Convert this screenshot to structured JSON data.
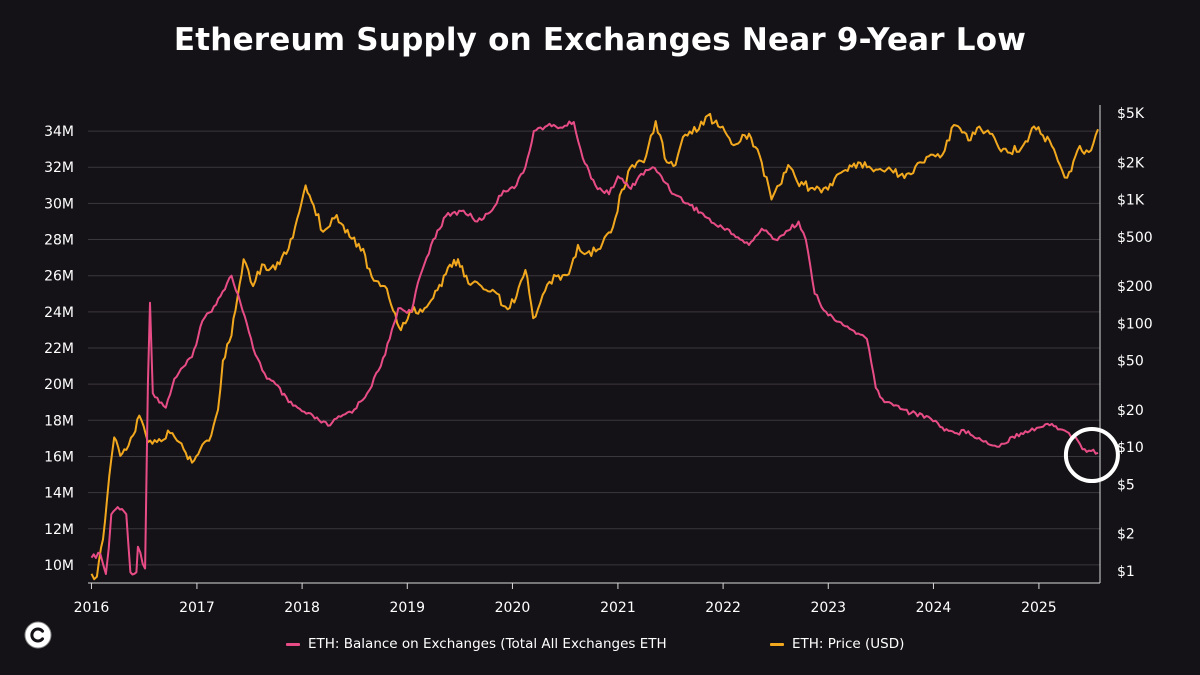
{
  "colors": {
    "balance": "#e84c86",
    "price": "#f2a81e",
    "background": "#141216",
    "grid": "#3a373d"
  },
  "logo": {
    "icon": "c-circle-logo-icon"
  },
  "chart_data": {
    "type": "line",
    "title": "Ethereum Supply on Exchanges Near 9-Year Low",
    "xlabel": "",
    "ylabel_left": "",
    "ylabel_right": "",
    "x_ticks": [
      "2016",
      "2017",
      "2018",
      "2019",
      "2020",
      "2021",
      "2022",
      "2023",
      "2024",
      "2025"
    ],
    "xlim": [
      "2015-12-20",
      "2025-08-01"
    ],
    "y_left_ticks": [
      {
        "value": 10000000,
        "label": "10M"
      },
      {
        "value": 12000000,
        "label": "12M"
      },
      {
        "value": 14000000,
        "label": "14M"
      },
      {
        "value": 16000000,
        "label": "16M"
      },
      {
        "value": 18000000,
        "label": "18M"
      },
      {
        "value": 20000000,
        "label": "20M"
      },
      {
        "value": 22000000,
        "label": "22M"
      },
      {
        "value": 24000000,
        "label": "24M"
      },
      {
        "value": 26000000,
        "label": "26M"
      },
      {
        "value": 28000000,
        "label": "28M"
      },
      {
        "value": 30000000,
        "label": "30M"
      },
      {
        "value": 32000000,
        "label": "32M"
      },
      {
        "value": 34000000,
        "label": "34M"
      }
    ],
    "ylim_left": [
      9000000,
      35000000
    ],
    "y_right_scale": "log",
    "y_right_ticks": [
      {
        "value": 1,
        "label": "$1"
      },
      {
        "value": 2,
        "label": "$2"
      },
      {
        "value": 5,
        "label": "$5"
      },
      {
        "value": 10,
        "label": "$10"
      },
      {
        "value": 20,
        "label": "$20"
      },
      {
        "value": 50,
        "label": "$50"
      },
      {
        "value": 100,
        "label": "$100"
      },
      {
        "value": 200,
        "label": "$200"
      },
      {
        "value": 500,
        "label": "$500"
      },
      {
        "value": 1000,
        "label": "$1K"
      },
      {
        "value": 2000,
        "label": "$2K"
      },
      {
        "value": 5000,
        "label": "$5K"
      }
    ],
    "ylim_right": [
      0.8,
      5000
    ],
    "grid": true,
    "legend_position": "bottom",
    "annotations": [
      {
        "type": "circle",
        "x": "2025-06-20",
        "y": 16300000,
        "axis": "left"
      }
    ],
    "series": [
      {
        "name": "ETH: Balance on Exchanges (Total All Exchanges ETH",
        "axis": "left",
        "color": "#e84c86",
        "points": [
          [
            "2016-01-01",
            10400000
          ],
          [
            "2016-02-01",
            10600000
          ],
          [
            "2016-02-20",
            9500000
          ],
          [
            "2016-03-01",
            10900000
          ],
          [
            "2016-03-10",
            12800000
          ],
          [
            "2016-04-01",
            13200000
          ],
          [
            "2016-05-01",
            12800000
          ],
          [
            "2016-05-15",
            9600000
          ],
          [
            "2016-06-05",
            9600000
          ],
          [
            "2016-06-10",
            11000000
          ],
          [
            "2016-07-05",
            9800000
          ],
          [
            "2016-07-15",
            20000000
          ],
          [
            "2016-07-22",
            24500000
          ],
          [
            "2016-08-01",
            19500000
          ],
          [
            "2016-09-15",
            18700000
          ],
          [
            "2016-10-15",
            20300000
          ],
          [
            "2016-12-15",
            21500000
          ],
          [
            "2017-01-20",
            23500000
          ],
          [
            "2017-03-01",
            24300000
          ],
          [
            "2017-05-01",
            26000000
          ],
          [
            "2017-06-01",
            24500000
          ],
          [
            "2017-07-15",
            22000000
          ],
          [
            "2017-09-01",
            20300000
          ],
          [
            "2017-10-01",
            20000000
          ],
          [
            "2017-11-15",
            19000000
          ],
          [
            "2018-01-01",
            18500000
          ],
          [
            "2018-03-01",
            18000000
          ],
          [
            "2018-04-01",
            17700000
          ],
          [
            "2018-05-15",
            18200000
          ],
          [
            "2018-07-01",
            18600000
          ],
          [
            "2018-08-15",
            19500000
          ],
          [
            "2018-10-01",
            21000000
          ],
          [
            "2018-11-01",
            22500000
          ],
          [
            "2018-12-01",
            24200000
          ],
          [
            "2019-01-15",
            24000000
          ],
          [
            "2019-02-15",
            26000000
          ],
          [
            "2019-04-01",
            28000000
          ],
          [
            "2019-05-15",
            29300000
          ],
          [
            "2019-07-15",
            29600000
          ],
          [
            "2019-09-01",
            29000000
          ],
          [
            "2019-10-15",
            29500000
          ],
          [
            "2019-12-01",
            30700000
          ],
          [
            "2020-01-15",
            31000000
          ],
          [
            "2020-02-15",
            32000000
          ],
          [
            "2020-03-15",
            34000000
          ],
          [
            "2020-05-01",
            34300000
          ],
          [
            "2020-06-15",
            34200000
          ],
          [
            "2020-08-01",
            34500000
          ],
          [
            "2020-09-01",
            32500000
          ],
          [
            "2020-10-15",
            31000000
          ],
          [
            "2020-12-01",
            30500000
          ],
          [
            "2021-01-01",
            31500000
          ],
          [
            "2021-02-15",
            30800000
          ],
          [
            "2021-03-15",
            31500000
          ],
          [
            "2021-05-01",
            32000000
          ],
          [
            "2021-06-01",
            31500000
          ],
          [
            "2021-07-15",
            30500000
          ],
          [
            "2021-09-01",
            30000000
          ],
          [
            "2021-10-15",
            29500000
          ],
          [
            "2021-12-15",
            28700000
          ],
          [
            "2022-01-15",
            28600000
          ],
          [
            "2022-03-01",
            28000000
          ],
          [
            "2022-04-01",
            27700000
          ],
          [
            "2022-05-15",
            28600000
          ],
          [
            "2022-07-01",
            28000000
          ],
          [
            "2022-08-15",
            28500000
          ],
          [
            "2022-09-20",
            29000000
          ],
          [
            "2022-10-15",
            28000000
          ],
          [
            "2022-11-15",
            25000000
          ],
          [
            "2023-01-01",
            23800000
          ],
          [
            "2023-03-01",
            23200000
          ],
          [
            "2023-04-15",
            22800000
          ],
          [
            "2023-05-15",
            22500000
          ],
          [
            "2023-06-15",
            19800000
          ],
          [
            "2023-07-15",
            19000000
          ],
          [
            "2023-09-01",
            18800000
          ],
          [
            "2023-10-15",
            18400000
          ],
          [
            "2023-12-15",
            18200000
          ],
          [
            "2024-02-01",
            17600000
          ],
          [
            "2024-03-15",
            17300000
          ],
          [
            "2024-05-01",
            17400000
          ],
          [
            "2024-06-15",
            16900000
          ],
          [
            "2024-08-01",
            16600000
          ],
          [
            "2024-09-01",
            16700000
          ],
          [
            "2024-10-01",
            17100000
          ],
          [
            "2024-11-15",
            17400000
          ],
          [
            "2025-01-01",
            17600000
          ],
          [
            "2025-02-15",
            17800000
          ],
          [
            "2025-03-15",
            17500000
          ],
          [
            "2025-04-15",
            17300000
          ],
          [
            "2025-05-15",
            16900000
          ],
          [
            "2025-06-01",
            16400000
          ],
          [
            "2025-07-01",
            16300000
          ],
          [
            "2025-07-25",
            16200000
          ]
        ]
      },
      {
        "name": "ETH: Price (USD)",
        "axis": "right",
        "color": "#f2a81e",
        "points": [
          [
            "2016-01-01",
            0.95
          ],
          [
            "2016-01-20",
            0.9
          ],
          [
            "2016-02-10",
            1.8
          ],
          [
            "2016-02-25",
            4.0
          ],
          [
            "2016-03-10",
            8.0
          ],
          [
            "2016-03-20",
            12.0
          ],
          [
            "2016-04-10",
            8.5
          ],
          [
            "2016-05-01",
            9.5
          ],
          [
            "2016-05-25",
            12.5
          ],
          [
            "2016-06-15",
            18.0
          ],
          [
            "2016-07-15",
            11.0
          ],
          [
            "2016-08-15",
            11.0
          ],
          [
            "2016-09-30",
            13.0
          ],
          [
            "2016-11-01",
            11.0
          ],
          [
            "2016-12-15",
            7.5
          ],
          [
            "2017-01-20",
            10.5
          ],
          [
            "2017-02-20",
            12.5
          ],
          [
            "2017-03-15",
            20.0
          ],
          [
            "2017-04-01",
            50.0
          ],
          [
            "2017-05-01",
            80.0
          ],
          [
            "2017-06-12",
            330.0
          ],
          [
            "2017-07-15",
            200.0
          ],
          [
            "2017-08-15",
            300.0
          ],
          [
            "2017-09-15",
            280.0
          ],
          [
            "2017-10-15",
            300.0
          ],
          [
            "2017-11-15",
            400.0
          ],
          [
            "2017-12-15",
            700.0
          ],
          [
            "2018-01-13",
            1300.0
          ],
          [
            "2018-02-10",
            900.0
          ],
          [
            "2018-03-15",
            550.0
          ],
          [
            "2018-05-01",
            750.0
          ],
          [
            "2018-06-15",
            500.0
          ],
          [
            "2018-08-01",
            400.0
          ],
          [
            "2018-08-15",
            280.0
          ],
          [
            "2018-09-15",
            220.0
          ],
          [
            "2018-10-15",
            200.0
          ],
          [
            "2018-11-20",
            120.0
          ],
          [
            "2018-12-10",
            88.0
          ],
          [
            "2019-01-10",
            125.0
          ],
          [
            "2019-02-15",
            130.0
          ],
          [
            "2019-04-01",
            160.0
          ],
          [
            "2019-05-15",
            250.0
          ],
          [
            "2019-06-26",
            330.0
          ],
          [
            "2019-08-01",
            210.0
          ],
          [
            "2019-09-15",
            200.0
          ],
          [
            "2019-11-01",
            180.0
          ],
          [
            "2019-12-15",
            130.0
          ],
          [
            "2020-01-15",
            165.0
          ],
          [
            "2020-02-15",
            270.0
          ],
          [
            "2020-03-13",
            110.0
          ],
          [
            "2020-04-15",
            170.0
          ],
          [
            "2020-06-01",
            240.0
          ],
          [
            "2020-07-15",
            250.0
          ],
          [
            "2020-08-15",
            430.0
          ],
          [
            "2020-09-15",
            370.0
          ],
          [
            "2020-11-01",
            400.0
          ],
          [
            "2020-12-15",
            600.0
          ],
          [
            "2021-01-15",
            1200.0
          ],
          [
            "2021-02-20",
            1900.0
          ],
          [
            "2021-04-01",
            2000.0
          ],
          [
            "2021-05-12",
            4300.0
          ],
          [
            "2021-06-20",
            2000.0
          ],
          [
            "2021-07-20",
            1900.0
          ],
          [
            "2021-08-15",
            3200.0
          ],
          [
            "2021-09-15",
            3400.0
          ],
          [
            "2021-11-10",
            4800.0
          ],
          [
            "2021-12-15",
            3900.0
          ],
          [
            "2022-01-15",
            3300.0
          ],
          [
            "2022-02-15",
            2800.0
          ],
          [
            "2022-04-01",
            3400.0
          ],
          [
            "2022-05-15",
            2000.0
          ],
          [
            "2022-06-18",
            1000.0
          ],
          [
            "2022-07-15",
            1300.0
          ],
          [
            "2022-08-15",
            1900.0
          ],
          [
            "2022-09-15",
            1400.0
          ],
          [
            "2022-11-15",
            1200.0
          ],
          [
            "2022-12-31",
            1200.0
          ],
          [
            "2023-02-15",
            1650.0
          ],
          [
            "2023-04-15",
            2000.0
          ],
          [
            "2023-06-15",
            1750.0
          ],
          [
            "2023-08-15",
            1650.0
          ],
          [
            "2023-10-15",
            1600.0
          ],
          [
            "2023-11-15",
            2000.0
          ],
          [
            "2023-12-31",
            2300.0
          ],
          [
            "2024-02-01",
            2300.0
          ],
          [
            "2024-03-12",
            4000.0
          ],
          [
            "2024-05-01",
            3000.0
          ],
          [
            "2024-06-01",
            3800.0
          ],
          [
            "2024-07-15",
            3400.0
          ],
          [
            "2024-08-15",
            2600.0
          ],
          [
            "2024-09-15",
            2400.0
          ],
          [
            "2024-11-01",
            2600.0
          ],
          [
            "2024-12-15",
            3900.0
          ],
          [
            "2025-01-15",
            3300.0
          ],
          [
            "2025-02-15",
            2700.0
          ],
          [
            "2025-03-15",
            1900.0
          ],
          [
            "2025-04-09",
            1500.0
          ],
          [
            "2025-05-15",
            2500.0
          ],
          [
            "2025-06-15",
            2500.0
          ],
          [
            "2025-07-01",
            2500.0
          ],
          [
            "2025-07-25",
            3700.0
          ]
        ]
      }
    ]
  }
}
